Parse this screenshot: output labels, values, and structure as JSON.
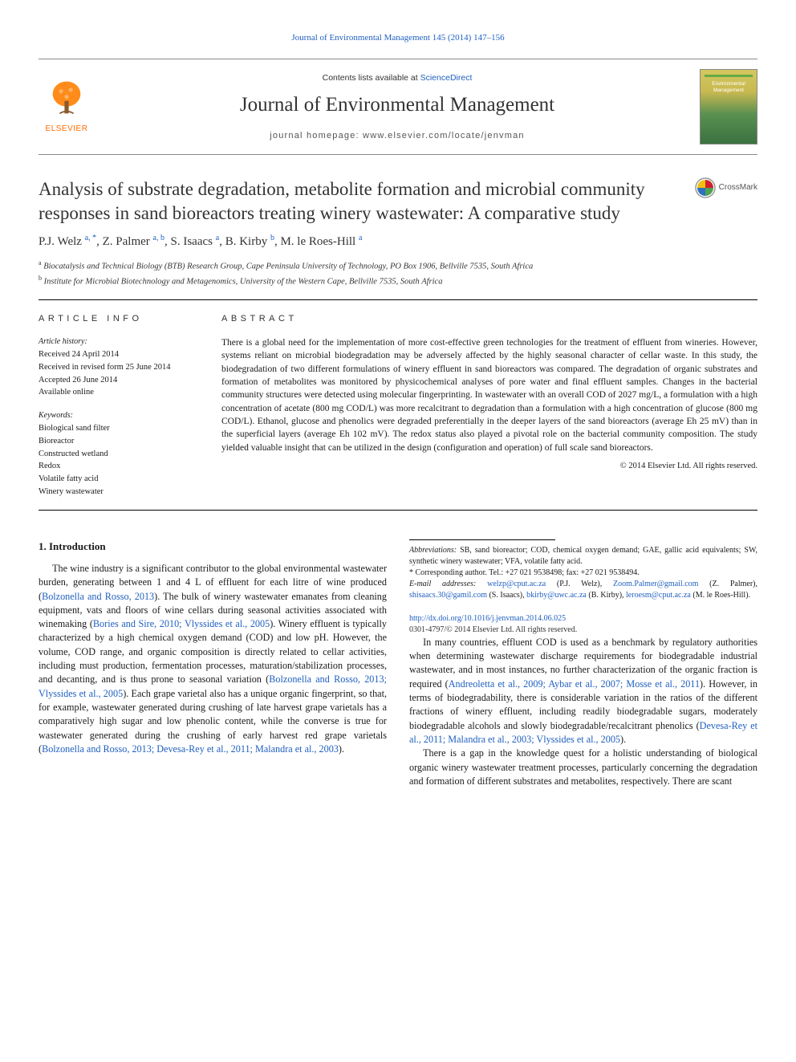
{
  "top_link": "Journal of Environmental Management 145 (2014) 147–156",
  "header": {
    "contents_prefix": "Contents lists available at ",
    "contents_link": "ScienceDirect",
    "journal_name": "Journal of Environmental Management",
    "homepage_label": "journal homepage: www.elsevier.com/locate/jenvman",
    "elsevier_brand": "ELSEVIER",
    "cover_text": "Environmental Management"
  },
  "crossmark_label": "CrossMark",
  "title": "Analysis of substrate degradation, metabolite formation and microbial community responses in sand bioreactors treating winery wastewater: A comparative study",
  "authors_html": "P.J. Welz <sup>a, *</sup>, Z. Palmer <sup>a, b</sup>, S. Isaacs <sup>a</sup>, B. Kirby <sup>b</sup>, M. le Roes-Hill <sup>a</sup>",
  "affiliations": [
    {
      "sup": "a",
      "text": "Biocatalysis and Technical Biology (BTB) Research Group, Cape Peninsula University of Technology, PO Box 1906, Bellville 7535, South Africa"
    },
    {
      "sup": "b",
      "text": "Institute for Microbial Biotechnology and Metagenomics, University of the Western Cape, Bellville 7535, South Africa"
    }
  ],
  "article_info": {
    "heading": "ARTICLE INFO",
    "history_label": "Article history:",
    "dates": [
      "Received 24 April 2014",
      "Received in revised form 25 June 2014",
      "Accepted 26 June 2014",
      "Available online"
    ],
    "keywords_label": "Keywords:",
    "keywords": [
      "Biological sand filter",
      "Bioreactor",
      "Constructed wetland",
      "Redox",
      "Volatile fatty acid",
      "Winery wastewater"
    ]
  },
  "abstract": {
    "heading": "ABSTRACT",
    "text": "There is a global need for the implementation of more cost-effective green technologies for the treatment of effluent from wineries. However, systems reliant on microbial biodegradation may be adversely affected by the highly seasonal character of cellar waste. In this study, the biodegradation of two different formulations of winery effluent in sand bioreactors was compared. The degradation of organic substrates and formation of metabolites was monitored by physicochemical analyses of pore water and final effluent samples. Changes in the bacterial community structures were detected using molecular fingerprinting. In wastewater with an overall COD of 2027 mg/L, a formulation with a high concentration of acetate (800 mg COD/L) was more recalcitrant to degradation than a formulation with a high concentration of glucose (800 mg COD/L). Ethanol, glucose and phenolics were degraded preferentially in the deeper layers of the sand bioreactors (average Eh 25 mV) than in the superficial layers (average Eh 102 mV). The redox status also played a pivotal role on the bacterial community composition. The study yielded valuable insight that can be utilized in the design (configuration and operation) of full scale sand bioreactors.",
    "copyright": "© 2014 Elsevier Ltd. All rights reserved."
  },
  "body": {
    "section1_heading": "1.  Introduction",
    "p1_pre": "The wine industry is a significant contributor to the global environmental wastewater burden, generating between 1 and 4 L of effluent for each litre of wine produced (",
    "p1_c1": "Bolzonella and Rosso, 2013",
    "p1_mid1": "). The bulk of winery wastewater emanates from cleaning equipment, vats and floors of wine cellars during seasonal activities associated with winemaking (",
    "p1_c2": "Bories and Sire, 2010; Vlyssides et al., 2005",
    "p1_mid2": "). Winery effluent is typically characterized by a high chemical oxygen demand (COD) and low pH. However, the volume, COD range, and organic composition is directly related to cellar activities, including must production, fermentation processes, maturation/stabilization processes, and decanting, and is thus prone to seasonal variation (",
    "p1_c3": "Bolzonella and Rosso, 2013; Vlyssides et al., 2005",
    "p1_post": "). ",
    "p2_pre": "Each grape varietal also has a unique organic fingerprint, so that, for example, wastewater generated during crushing of late harvest grape varietals has a comparatively high sugar and low phenolic content, while the converse is true for wastewater generated during the crushing of early harvest red grape varietals (",
    "p2_c1": "Bolzonella and Rosso, 2013; Devesa-Rey et al., 2011; Malandra et al., 2003",
    "p2_post": ").",
    "p3_pre": "In many countries, effluent COD is used as a benchmark by regulatory authorities when determining wastewater discharge requirements for biodegradable industrial wastewater, and in most instances, no further characterization of the organic fraction is required (",
    "p3_c1": "Andreoletta et al., 2009; Aybar et al., 2007; Mosse et al., 2011",
    "p3_mid": "). However, in terms of biodegradability, there is considerable variation in the ratios of the different fractions of winery effluent, including readily biodegradable sugars, moderately biodegradable alcohols and slowly biodegradable/recalcitrant phenolics (",
    "p3_c2": "Devesa-Rey et al., 2011; Malandra et al., 2003; Vlyssides et al., 2005",
    "p3_post": ").",
    "p4": "There is a gap in the knowledge quest for a holistic understanding of biological organic winery wastewater treatment processes, particularly concerning the degradation and formation of different substrates and metabolites, respectively. There are scant"
  },
  "footnotes": {
    "abbrev_label": "Abbreviations:",
    "abbrev_text": " SB, sand bioreactor; COD, chemical oxygen demand; GAE, gallic acid equivalents; SW, synthetic winery wastewater; VFA, volatile fatty acid.",
    "corr": "* Corresponding author. Tel.: +27 021 9538498; fax: +27 021 9538494.",
    "email_label": "E-mail addresses:",
    "emails": [
      {
        "addr": "welzp@cput.ac.za",
        "who": " (P.J. Welz), "
      },
      {
        "addr": "Zoom.Palmer@gmail.com",
        "who": " (Z. Palmer), "
      },
      {
        "addr": "shisaacs.30@gamil.com",
        "who": " (S. Isaacs), "
      },
      {
        "addr": "bkirby@uwc.ac.za",
        "who": " (B. Kirby), "
      },
      {
        "addr": "leroesm@cput.ac.za",
        "who": " (M. le Roes-Hill)."
      }
    ]
  },
  "doi": "http://dx.doi.org/10.1016/j.jenvman.2014.06.025",
  "issn": "0301-4797/© 2014 Elsevier Ltd. All rights reserved.",
  "colors": {
    "link": "#2060c0",
    "elsevier_orange": "#ff6b00",
    "text": "#1a1a1a"
  }
}
